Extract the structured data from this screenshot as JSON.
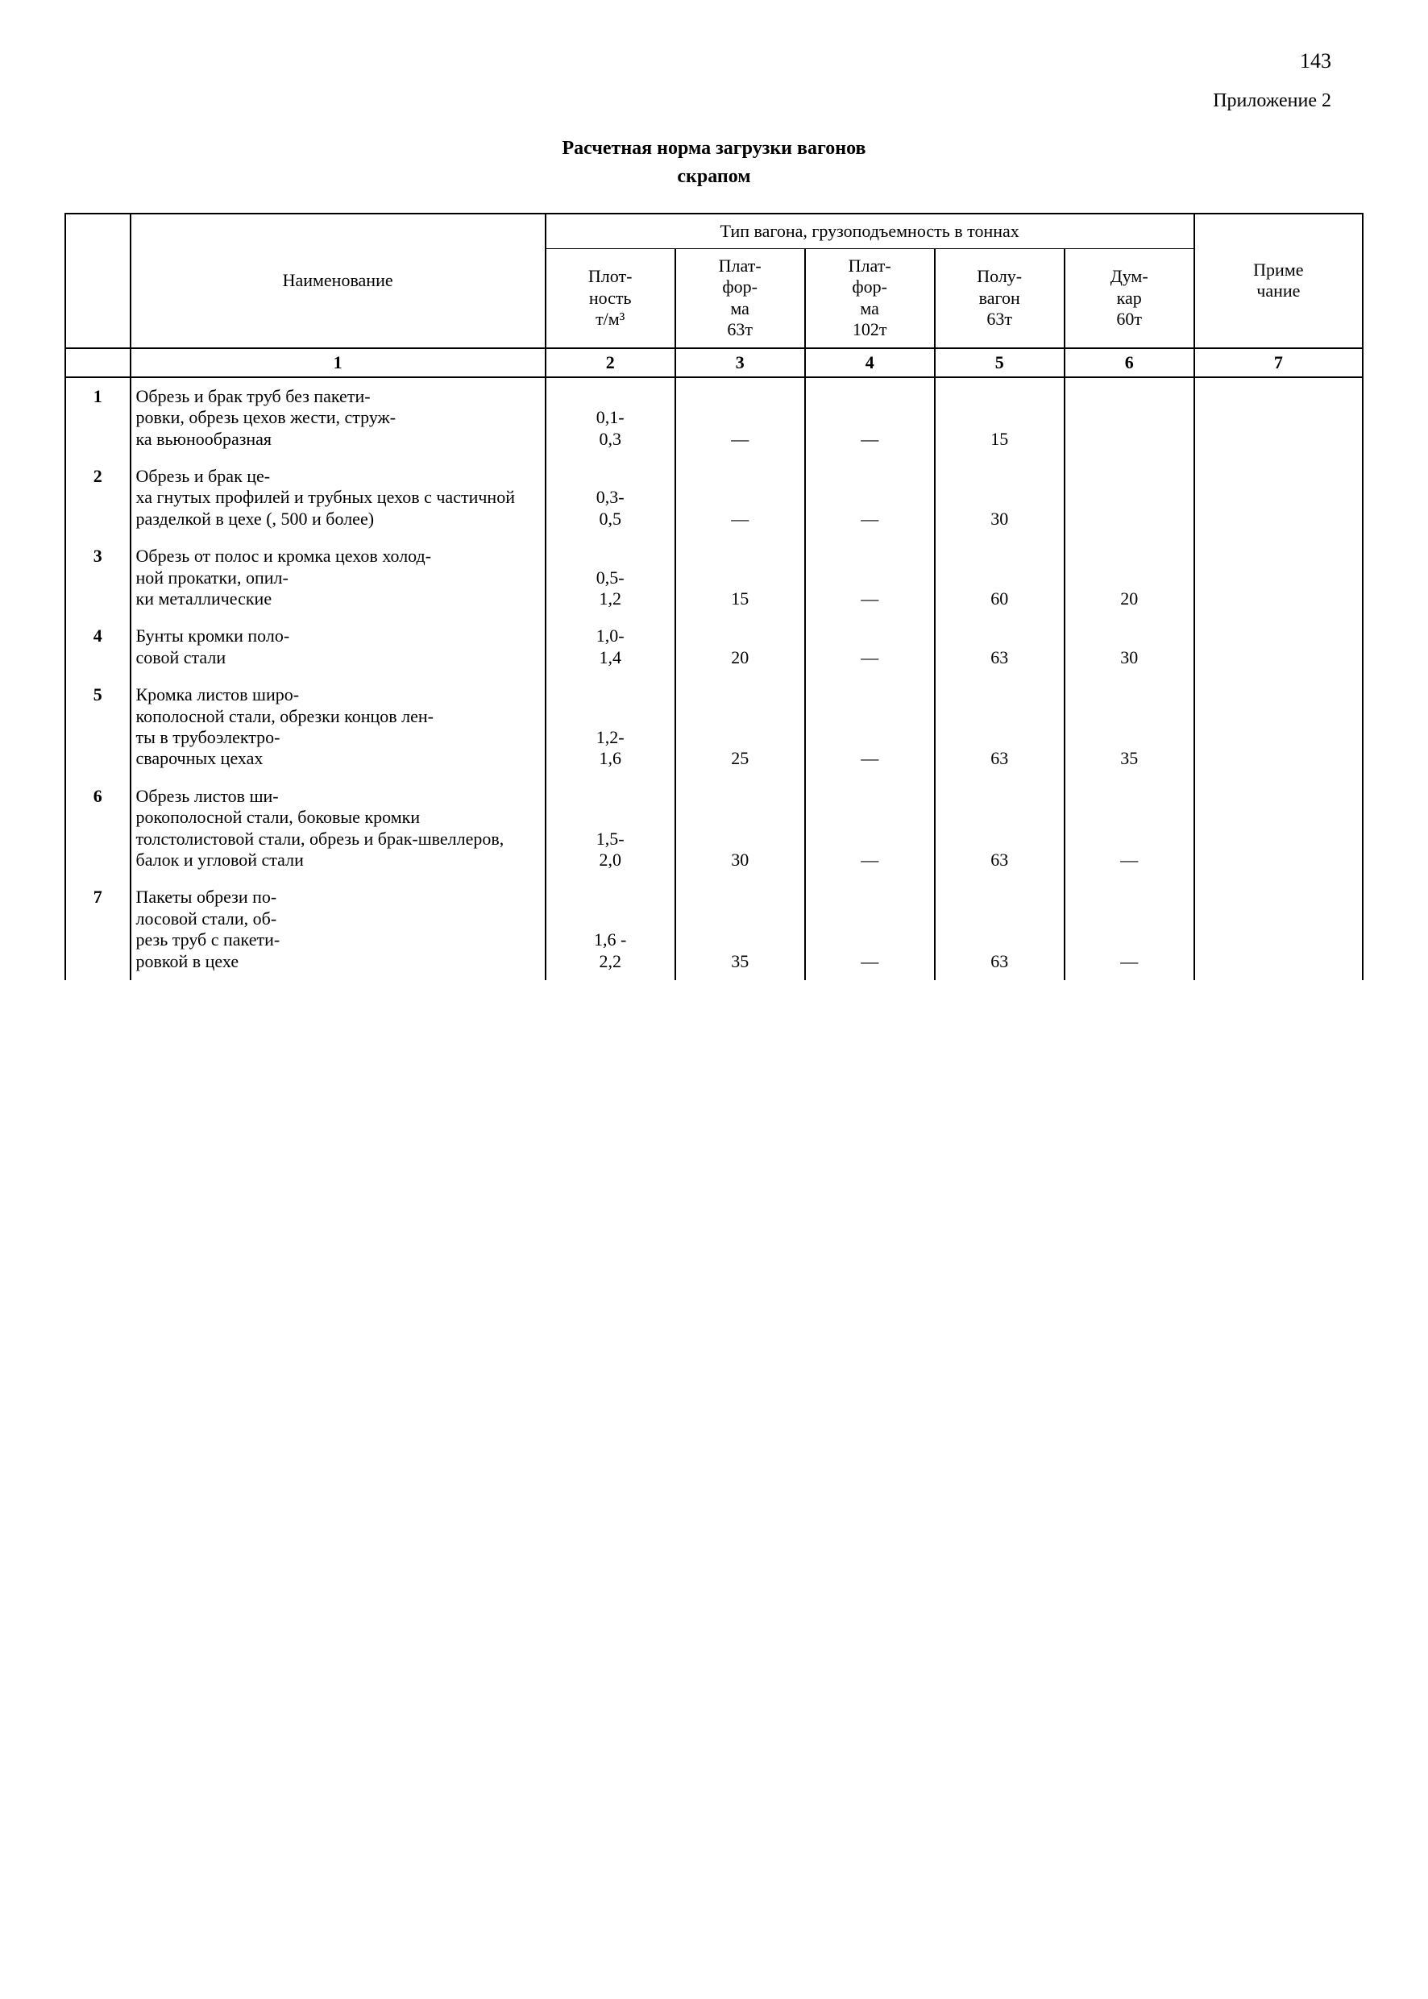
{
  "page_number": "143",
  "appendix_label": "Приложение 2",
  "title_line1": "Расчетная норма загрузки вагонов",
  "title_line2": "скрапом",
  "headers": {
    "name": "Наименование",
    "wagon_group": "Тип вагона, грузоподъемность в тоннах",
    "density": "Плот-\nность\nт/м³",
    "platform63": "Плат-\nфор-\nма\n63т",
    "platform102": "Плат-\nфор-\nма\n102т",
    "halfwagon": "Полу-\nвагон\n63т",
    "dumpcar": "Дум-\nкар\n60т",
    "note": "Приме\nчание"
  },
  "colnums": [
    "",
    "1",
    "2",
    "3",
    "4",
    "5",
    "6",
    "7"
  ],
  "rows": [
    {
      "n": "1",
      "name": "Обрезь и брак труб без пакети-\nровки, обрезь цехов жести, струж-\nка вьюнообразная",
      "density": "0,1-\n0,3",
      "p63": "—",
      "p102": "—",
      "hw": "15",
      "dc": ""
    },
    {
      "n": "2",
      "name": "Обрезь и брак це-\nха гнутых профилей и трубных цехов с частичной разделкой в цехе (, 500 и более)",
      "density": "0,3-\n0,5",
      "p63": "—",
      "p102": "—",
      "hw": "30",
      "dc": ""
    },
    {
      "n": "3",
      "name": "Обрезь от полос и кромка цехов холод-\nной прокатки, опил-\nки металлические",
      "density": "0,5-\n1,2",
      "p63": "15",
      "p102": "—",
      "hw": "60",
      "dc": "20"
    },
    {
      "n": "4",
      "name": "Бунты кромки поло-\nсовой стали",
      "density": "1,0-\n1,4",
      "p63": "20",
      "p102": "—",
      "hw": "63",
      "dc": "30"
    },
    {
      "n": "5",
      "name": "Кромка листов широ-\nкополосной стали, обрезки концов лен-\nты в трубоэлектро-\nсварочных цехах",
      "density": "1,2-\n1,6",
      "p63": "25",
      "p102": "—",
      "hw": "63",
      "dc": "35"
    },
    {
      "n": "6",
      "name": "Обрезь листов ши-\nрокополосной стали, боковые кромки толстолистовой стали, обрезь и брак-швеллеров, балок и угловой стали",
      "density": "1,5-\n2,0",
      "p63": "30",
      "p102": "—",
      "hw": "63",
      "dc": "—"
    },
    {
      "n": "7",
      "name": "Пакеты обрези по-\nлосовой стали, об-\nрезь труб с пакети-\nровкой в цехе",
      "density": "1,6 -\n2,2",
      "p63": "35",
      "p102": "—",
      "hw": "63",
      "dc": "—"
    }
  ]
}
